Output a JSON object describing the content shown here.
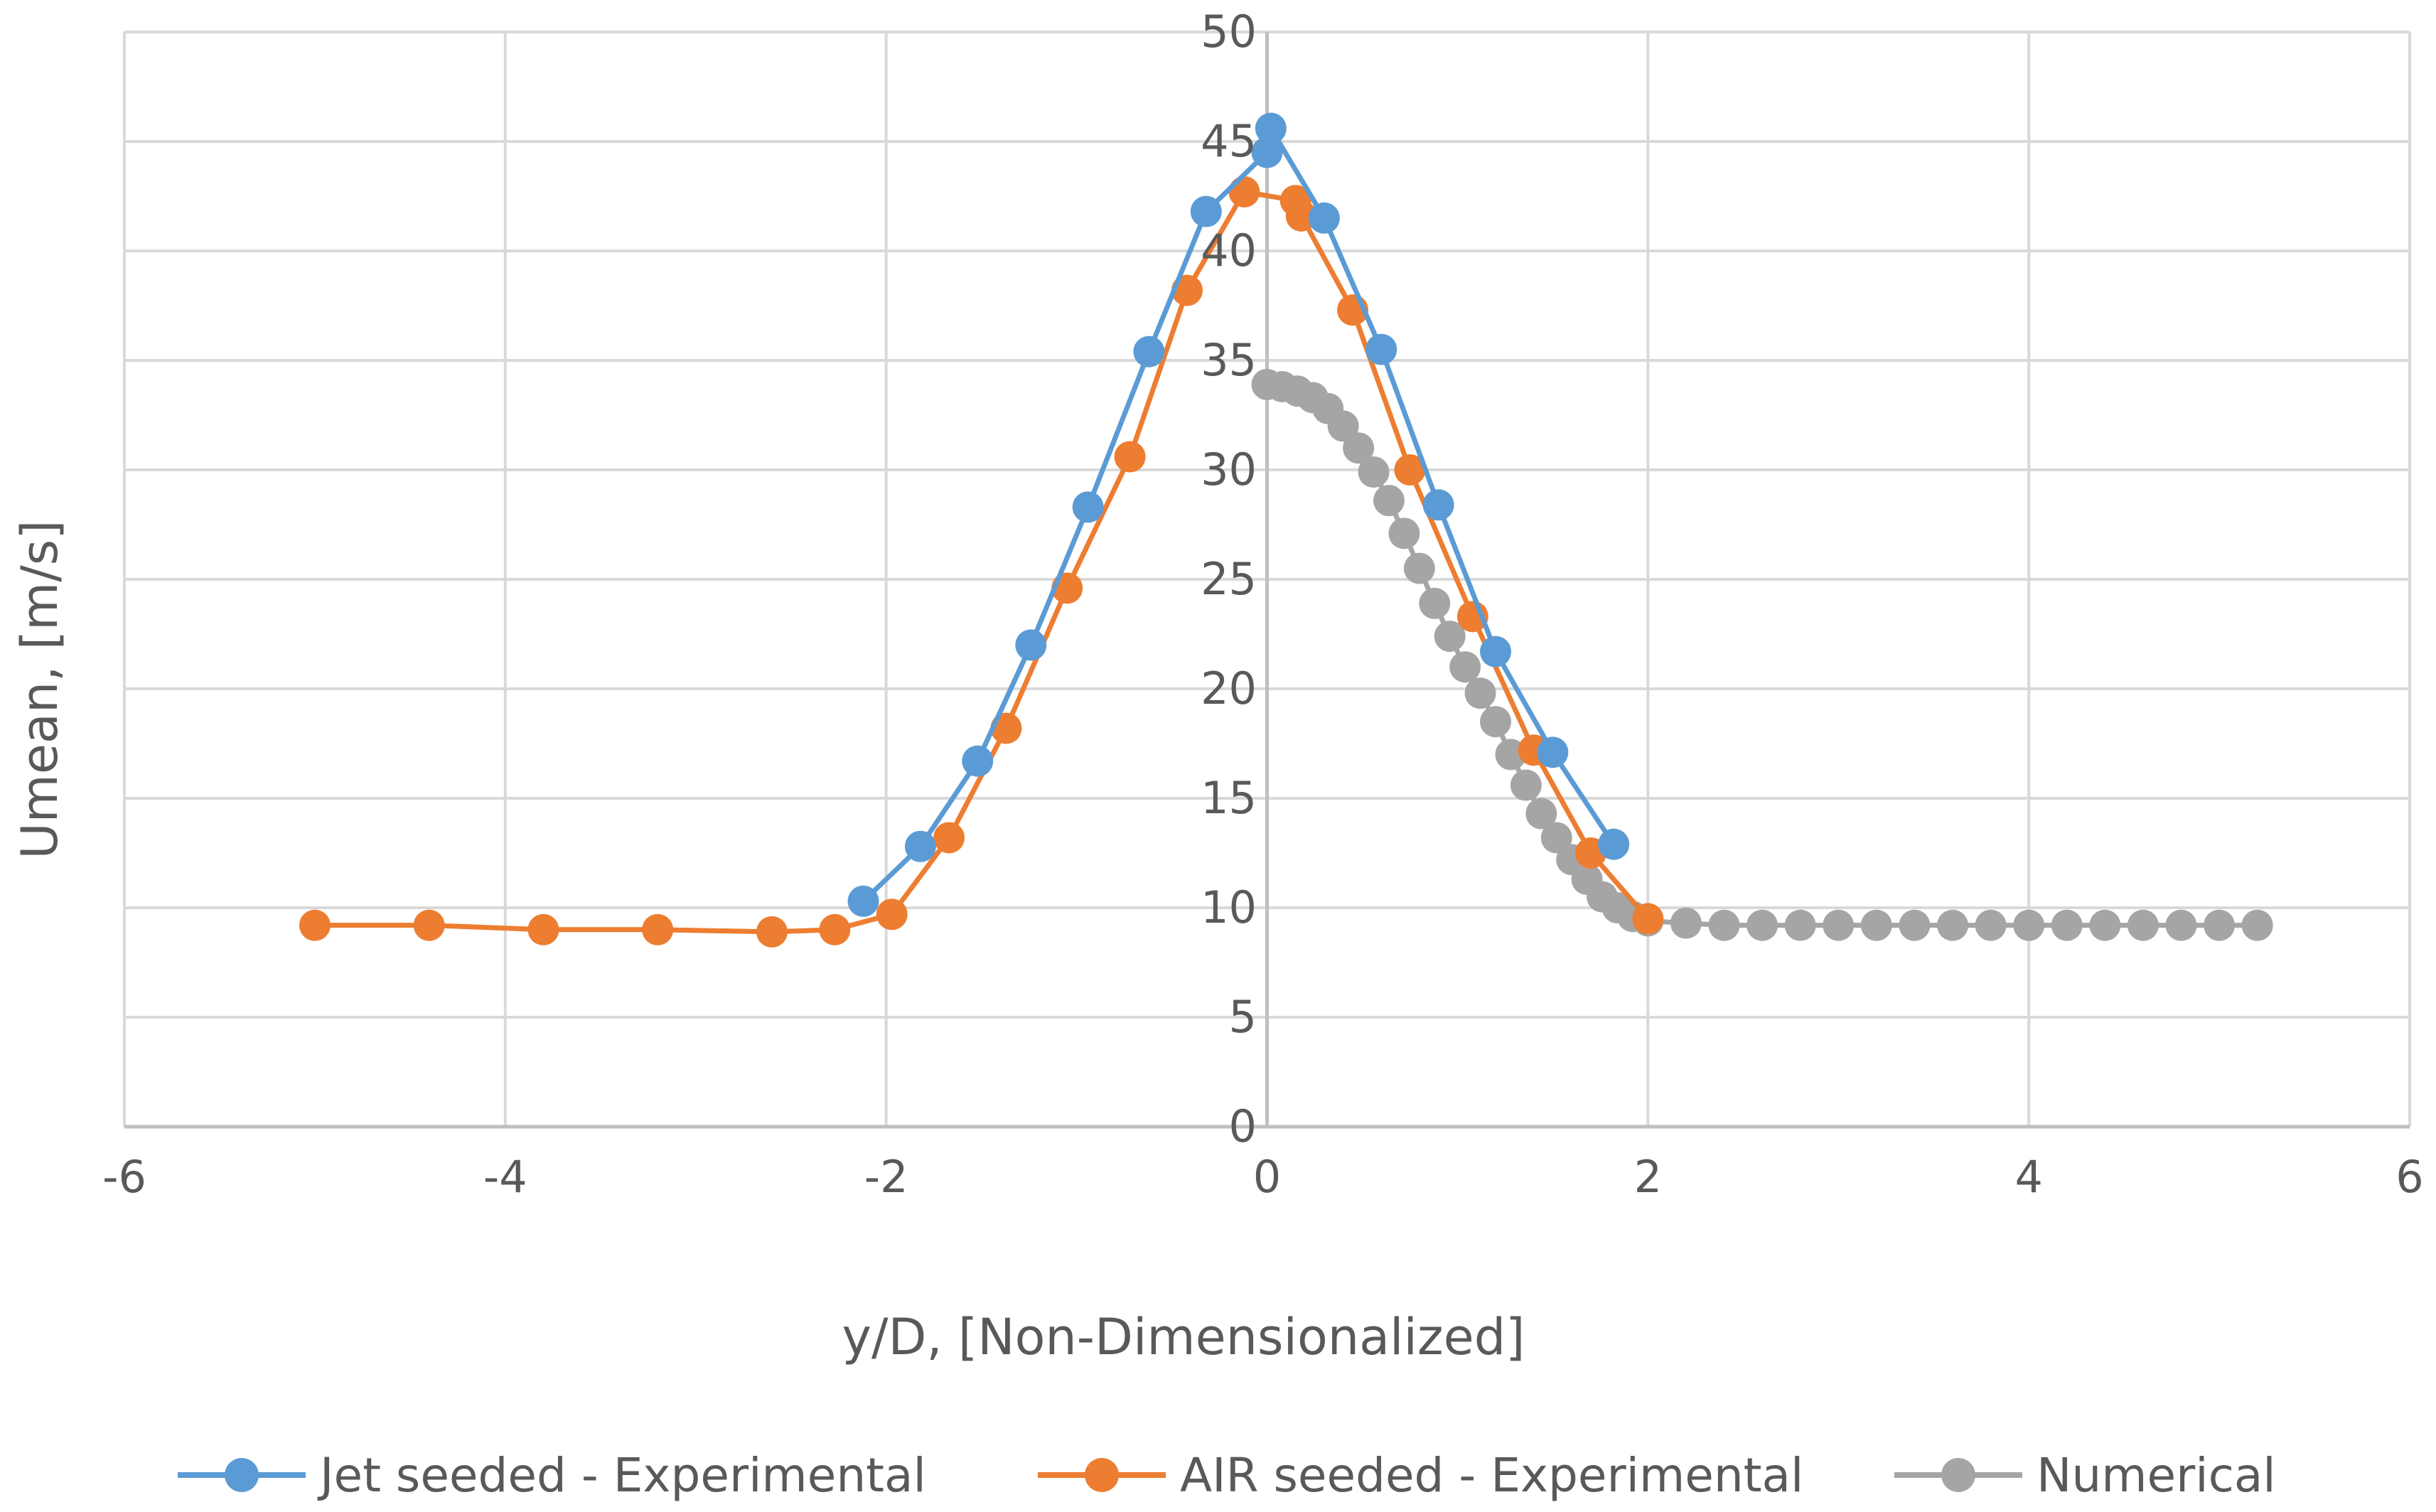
{
  "chart_data": {
    "type": "line",
    "title": "",
    "xlabel": "y/D, [Non-Dimensionalized]",
    "ylabel": "Umean, [m/s]",
    "xlim": [
      -6,
      6
    ],
    "ylim": [
      0,
      50
    ],
    "xticks": [
      -6,
      -4,
      -2,
      0,
      2,
      4,
      6
    ],
    "yticks": [
      0,
      5,
      10,
      15,
      20,
      25,
      30,
      35,
      40,
      45,
      50
    ],
    "grid": true,
    "legend_position": "bottom",
    "series": [
      {
        "name": "Jet seeded - Experimental",
        "color": "#5B9BD5",
        "x": [
          -2.12,
          -1.82,
          -1.52,
          -1.24,
          -0.94,
          -0.62,
          -0.32,
          0.0,
          0.02,
          0.3,
          0.6,
          0.9,
          1.2,
          1.5,
          1.82
        ],
        "y": [
          10.3,
          12.8,
          16.7,
          22.0,
          28.3,
          35.4,
          41.8,
          44.5,
          45.6,
          41.5,
          35.5,
          28.4,
          21.7,
          17.1,
          12.9
        ]
      },
      {
        "name": "AIR seeded - Experimental",
        "color": "#ED7D31",
        "x": [
          -5.0,
          -4.4,
          -3.8,
          -3.2,
          -2.6,
          -2.27,
          -1.97,
          -1.67,
          -1.37,
          -1.05,
          -0.72,
          -0.42,
          -0.12,
          0.15,
          0.18,
          0.45,
          0.75,
          1.08,
          1.4,
          1.7,
          2.0
        ],
        "y": [
          9.2,
          9.2,
          9.0,
          9.0,
          8.9,
          9.0,
          9.7,
          13.2,
          18.2,
          24.6,
          30.6,
          38.2,
          42.7,
          42.3,
          41.6,
          37.3,
          30.0,
          23.3,
          17.2,
          12.5,
          9.5
        ]
      },
      {
        "name": "Numerical",
        "color": "#A5A5A5",
        "x": [
          0.0,
          0.08,
          0.16,
          0.24,
          0.32,
          0.4,
          0.48,
          0.56,
          0.64,
          0.72,
          0.8,
          0.88,
          0.96,
          1.04,
          1.12,
          1.2,
          1.28,
          1.36,
          1.44,
          1.52,
          1.6,
          1.68,
          1.76,
          1.84,
          1.92,
          2.0,
          2.2,
          2.4,
          2.6,
          2.8,
          3.0,
          3.2,
          3.4,
          3.6,
          3.8,
          4.0,
          4.2,
          4.4,
          4.6,
          4.8,
          5.0,
          5.2
        ],
        "y": [
          33.9,
          33.8,
          33.6,
          33.3,
          32.8,
          32.0,
          31.0,
          29.9,
          28.6,
          27.1,
          25.5,
          23.9,
          22.4,
          21.0,
          19.8,
          18.5,
          17.0,
          15.6,
          14.3,
          13.2,
          12.2,
          11.3,
          10.5,
          10.0,
          9.6,
          9.4,
          9.3,
          9.2,
          9.2,
          9.2,
          9.2,
          9.2,
          9.2,
          9.2,
          9.2,
          9.2,
          9.2,
          9.2,
          9.2,
          9.2,
          9.2,
          9.2
        ]
      }
    ]
  }
}
